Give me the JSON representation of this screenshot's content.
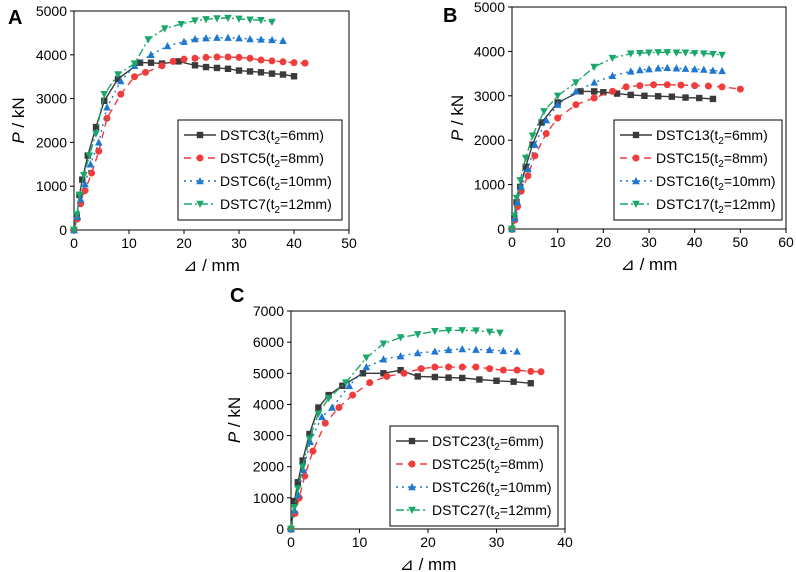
{
  "chart_data": [
    {
      "type": "line",
      "panel_label": "A",
      "xlabel": "⊿ / mm",
      "ylabel": {
        "var": "P",
        "unit": " / kN"
      },
      "xlim": [
        0,
        50
      ],
      "ylim": [
        0,
        5000
      ],
      "xticks": [
        0,
        10,
        20,
        30,
        40,
        50
      ],
      "yticks": [
        0,
        1000,
        2000,
        3000,
        4000,
        5000
      ],
      "legend_position": "bottom-right",
      "series": [
        {
          "name": "DSTC3",
          "t_label": "t",
          "t_sub": "2",
          "t_value": "=6mm)",
          "color": "#3a3a3a",
          "dash": "",
          "marker": "square",
          "x": [
            0,
            0.5,
            1,
            1.5,
            2.5,
            4,
            5.5,
            8,
            12,
            14,
            16,
            19,
            22,
            24,
            26,
            28,
            30,
            32,
            34,
            36,
            38,
            40
          ],
          "y": [
            0,
            300,
            800,
            1150,
            1700,
            2350,
            2950,
            3450,
            3820,
            3820,
            3800,
            3850,
            3760,
            3720,
            3700,
            3680,
            3640,
            3620,
            3600,
            3570,
            3550,
            3510
          ]
        },
        {
          "name": "DSTC5",
          "t_label": "t",
          "t_sub": "2",
          "t_value": "=8mm)",
          "color": "#f03c3c",
          "dash": "7,5",
          "marker": "circle",
          "x": [
            0,
            0.6,
            1.2,
            2,
            3.2,
            4.5,
            6,
            8.5,
            11,
            13,
            16,
            18,
            20,
            22,
            24,
            26,
            28,
            30,
            32,
            34,
            36,
            38,
            40,
            42
          ],
          "y": [
            0,
            250,
            600,
            900,
            1300,
            1800,
            2550,
            3100,
            3500,
            3600,
            3750,
            3850,
            3900,
            3920,
            3940,
            3950,
            3950,
            3940,
            3920,
            3880,
            3860,
            3840,
            3820,
            3810
          ]
        },
        {
          "name": "DSTC6",
          "t_label": "t",
          "t_sub": "2",
          "t_value": "=10mm)",
          "color": "#1f77d0",
          "dash": "2,4",
          "marker": "triangle-up",
          "x": [
            0,
            0.6,
            1.2,
            2,
            3,
            4.5,
            6,
            8.5,
            11,
            14,
            17,
            20,
            22,
            24,
            26,
            28,
            30,
            32,
            34,
            36,
            38
          ],
          "y": [
            0,
            300,
            700,
            1050,
            1500,
            2000,
            2800,
            3400,
            3750,
            4000,
            4200,
            4300,
            4360,
            4380,
            4390,
            4390,
            4380,
            4360,
            4350,
            4340,
            4320
          ]
        },
        {
          "name": "DSTC7",
          "t_label": "t",
          "t_sub": "2",
          "t_value": "=12mm)",
          "color": "#1aa86a",
          "dash": "8,3,2,3",
          "marker": "triangle-down",
          "x": [
            0,
            0.5,
            1,
            1.8,
            2.8,
            4,
            5.5,
            8,
            11,
            13.5,
            16.5,
            19.5,
            22,
            24,
            26,
            28,
            30,
            32,
            34,
            36
          ],
          "y": [
            0,
            350,
            800,
            1250,
            1700,
            2200,
            3100,
            3550,
            3800,
            4350,
            4600,
            4700,
            4780,
            4810,
            4830,
            4840,
            4820,
            4800,
            4790,
            4750
          ]
        }
      ]
    },
    {
      "type": "line",
      "panel_label": "B",
      "xlabel": "⊿ / mm",
      "ylabel": {
        "var": "P",
        "unit": " / kN"
      },
      "xlim": [
        0,
        60
      ],
      "ylim": [
        0,
        5000
      ],
      "xticks": [
        0,
        10,
        20,
        30,
        40,
        50,
        60
      ],
      "yticks": [
        0,
        1000,
        2000,
        3000,
        4000,
        5000
      ],
      "legend_position": "bottom-right",
      "series": [
        {
          "name": "DSTC13",
          "t_label": "t",
          "t_sub": "2",
          "t_value": "=6mm)",
          "color": "#3a3a3a",
          "dash": "",
          "marker": "square",
          "x": [
            0,
            0.5,
            1,
            1.8,
            3,
            4.5,
            6.5,
            10,
            15,
            18,
            20,
            23,
            26,
            29,
            32,
            35,
            38,
            41,
            44
          ],
          "y": [
            0,
            250,
            600,
            950,
            1400,
            1900,
            2400,
            2850,
            3100,
            3100,
            3080,
            3050,
            3020,
            3000,
            2990,
            2980,
            2960,
            2950,
            2930
          ]
        },
        {
          "name": "DSTC15",
          "t_label": "t",
          "t_sub": "2",
          "t_value": "=8mm)",
          "color": "#f03c3c",
          "dash": "7,5",
          "marker": "circle",
          "x": [
            0,
            0.6,
            1.2,
            2,
            3.5,
            5,
            7.5,
            10,
            14,
            18,
            22,
            25,
            28,
            31,
            34,
            37,
            40,
            43,
            46,
            50
          ],
          "y": [
            0,
            200,
            500,
            850,
            1200,
            1650,
            2150,
            2500,
            2800,
            2950,
            3100,
            3200,
            3230,
            3250,
            3250,
            3240,
            3230,
            3220,
            3200,
            3150
          ]
        },
        {
          "name": "DSTC16",
          "t_label": "t",
          "t_sub": "2",
          "t_value": "=10mm)",
          "color": "#1f77d0",
          "dash": "2,4",
          "marker": "triangle-up",
          "x": [
            0,
            0.6,
            1.2,
            2,
            3.5,
            5,
            7.5,
            10,
            14,
            18,
            22,
            26,
            28,
            30,
            32,
            34,
            36,
            38,
            40,
            42,
            44,
            46
          ],
          "y": [
            0,
            250,
            600,
            950,
            1350,
            1900,
            2450,
            2800,
            3100,
            3300,
            3450,
            3550,
            3580,
            3600,
            3620,
            3630,
            3620,
            3610,
            3600,
            3590,
            3570,
            3560
          ]
        },
        {
          "name": "DSTC17",
          "t_label": "t",
          "t_sub": "2",
          "t_value": "=12mm)",
          "color": "#1aa86a",
          "dash": "8,3,2,3",
          "marker": "triangle-down",
          "x": [
            0,
            0.5,
            1,
            1.8,
            3,
            4.5,
            7,
            10,
            14,
            18,
            22,
            26,
            28,
            30,
            32,
            34,
            36,
            38,
            40,
            42,
            44,
            46
          ],
          "y": [
            0,
            300,
            700,
            1100,
            1600,
            2100,
            2650,
            3000,
            3300,
            3650,
            3850,
            3950,
            3960,
            3970,
            3980,
            3980,
            3970,
            3970,
            3960,
            3950,
            3940,
            3920
          ]
        }
      ]
    },
    {
      "type": "line",
      "panel_label": "C",
      "xlabel": "⊿ / mm",
      "ylabel": {
        "var": "P",
        "unit": " / kN"
      },
      "xlim": [
        0,
        40
      ],
      "ylim": [
        0,
        7000
      ],
      "xticks": [
        0,
        10,
        20,
        30,
        40
      ],
      "yticks": [
        0,
        1000,
        2000,
        3000,
        4000,
        5000,
        6000,
        7000
      ],
      "legend_position": "bottom-right",
      "series": [
        {
          "name": "DSTC23",
          "t_label": "t",
          "t_sub": "2",
          "t_value": "=6mm)",
          "color": "#3a3a3a",
          "dash": "",
          "marker": "square",
          "x": [
            0,
            0.5,
            1,
            1.7,
            2.7,
            4,
            5.5,
            7.5,
            10.5,
            13.5,
            16,
            18.5,
            21,
            23,
            25,
            27.5,
            30,
            32.5,
            35
          ],
          "y": [
            0,
            900,
            1500,
            2200,
            3050,
            3900,
            4300,
            4600,
            5000,
            5000,
            5100,
            4900,
            4880,
            4860,
            4850,
            4800,
            4760,
            4730,
            4680
          ]
        },
        {
          "name": "DSTC25",
          "t_label": "t",
          "t_sub": "2",
          "t_value": "=8mm)",
          "color": "#f03c3c",
          "dash": "7,5",
          "marker": "circle",
          "x": [
            0,
            0.6,
            1.2,
            2,
            3.2,
            5,
            7,
            9,
            11.5,
            14,
            16.5,
            19,
            21,
            23,
            25,
            27,
            29,
            31,
            33,
            35,
            36.5
          ],
          "y": [
            0,
            500,
            1000,
            1700,
            2500,
            3400,
            3900,
            4300,
            4700,
            4900,
            5000,
            5150,
            5200,
            5200,
            5200,
            5200,
            5150,
            5100,
            5100,
            5060,
            5050
          ]
        },
        {
          "name": "DSTC26",
          "t_label": "t",
          "t_sub": "2",
          "t_value": "=10mm)",
          "color": "#1f77d0",
          "dash": "2,4",
          "marker": "triangle-up",
          "x": [
            0,
            0.5,
            1,
            1.8,
            2.8,
            4.5,
            6,
            8.5,
            11,
            13.5,
            16,
            18.5,
            21,
            23,
            25,
            27,
            29,
            31,
            33
          ],
          "y": [
            0,
            600,
            1100,
            1900,
            2800,
            3600,
            3900,
            4600,
            5200,
            5450,
            5550,
            5650,
            5700,
            5750,
            5780,
            5760,
            5750,
            5720,
            5700
          ]
        },
        {
          "name": "DSTC27",
          "t_label": "t",
          "t_sub": "2",
          "t_value": "=12mm)",
          "color": "#1aa86a",
          "dash": "8,3,2,3",
          "marker": "triangle-down",
          "x": [
            0,
            0.5,
            1,
            1.7,
            2.7,
            4,
            5.5,
            8,
            11,
            13.5,
            16,
            18.5,
            21,
            23,
            25,
            27,
            29,
            30.5
          ],
          "y": [
            0,
            700,
            1300,
            2000,
            2900,
            3700,
            4200,
            4700,
            5500,
            5950,
            6150,
            6250,
            6350,
            6380,
            6380,
            6370,
            6330,
            6300
          ]
        }
      ]
    }
  ]
}
